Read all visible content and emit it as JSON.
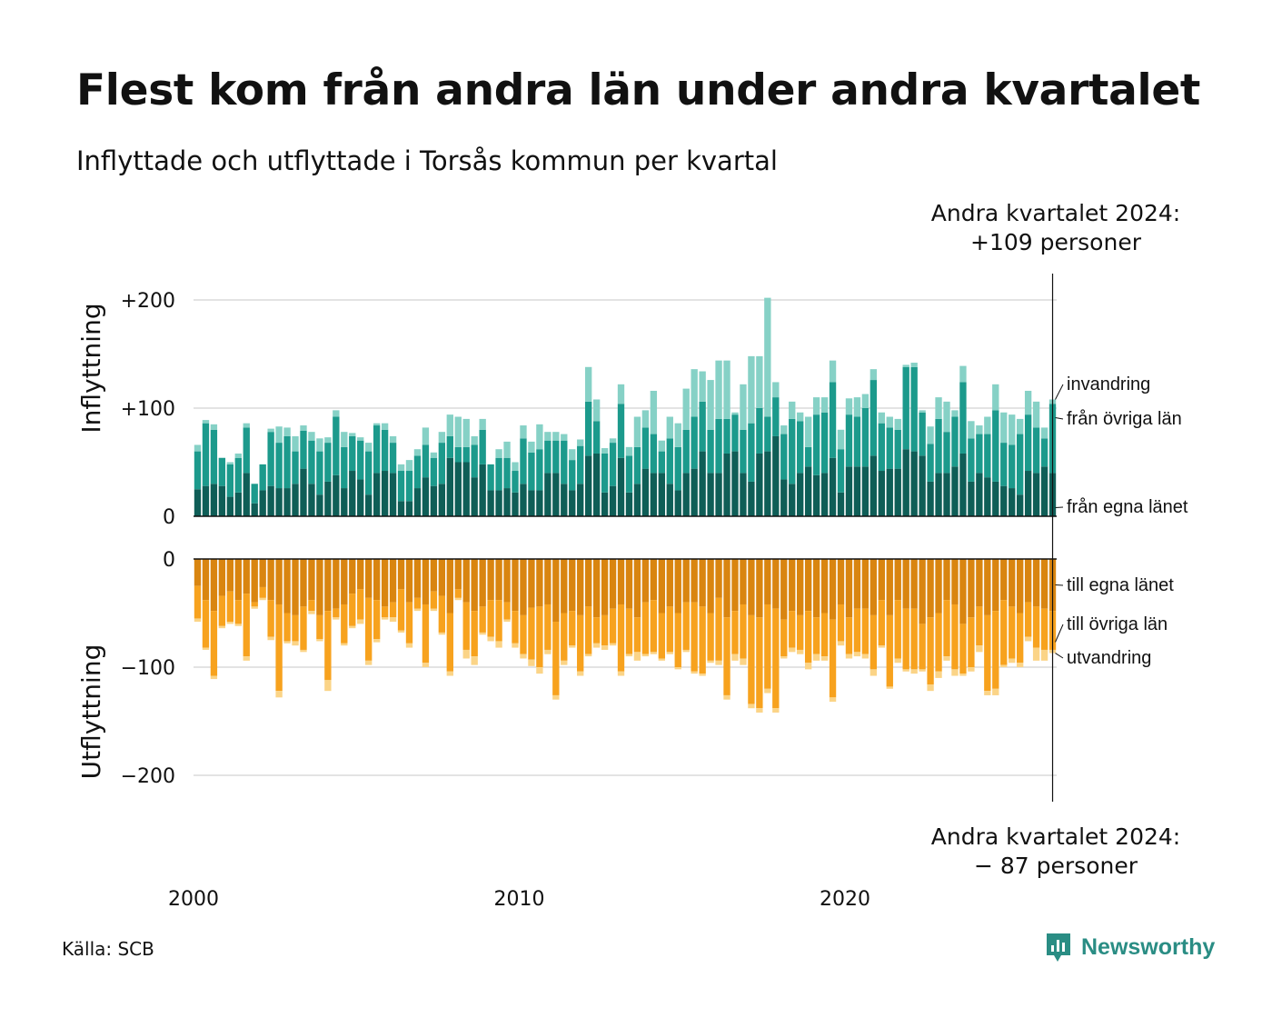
{
  "title": "Flest kom från andra län under andra kvartalet",
  "subtitle": "Inflyttade och utflyttade i Torsås kommun per kvartal",
  "annotations": {
    "top_line1": "Andra kvartalet 2024:",
    "top_line2": "+109 personer",
    "bottom_line1": "Andra kvartalet 2024:",
    "bottom_line2": "− 87 personer"
  },
  "source": "Källa: SCB",
  "brand": "Newsworthy",
  "colors": {
    "in_own": "#0f5e57",
    "in_other": "#1c9a8c",
    "in_abroad": "#86d1c6",
    "out_own": "#d98510",
    "out_other": "#f7a21e",
    "out_abroad": "#fbd487",
    "grid": "#e3e3e3",
    "brand": "#2a8d84"
  },
  "chart_data": {
    "type": "bar",
    "stacked": true,
    "x_start": "2000 Q1",
    "x_end": "2024 Q2",
    "x_ticks": [
      "2000",
      "2010",
      "2020"
    ],
    "panels": [
      {
        "ylabel": "Inflyttning",
        "ylim": [
          0,
          225
        ],
        "y_ticks": [
          {
            "value": 0,
            "label": "0"
          },
          {
            "value": 100,
            "label": "+100"
          },
          {
            "value": 200,
            "label": "+200"
          }
        ],
        "series": [
          {
            "name": "från egna länet",
            "values": [
              25,
              28,
              30,
              28,
              18,
              22,
              40,
              12,
              24,
              28,
              26,
              26,
              30,
              44,
              30,
              20,
              32,
              38,
              26,
              42,
              34,
              20,
              40,
              42,
              40,
              14,
              14,
              26,
              36,
              28,
              30,
              54,
              50,
              50,
              36,
              48,
              24,
              24,
              26,
              22,
              30,
              24,
              24,
              40,
              40,
              30,
              24,
              30,
              56,
              58,
              22,
              28,
              54,
              22,
              30,
              44,
              40,
              40,
              30,
              24,
              40,
              44,
              60,
              40,
              40,
              58,
              60,
              40,
              32,
              58,
              60,
              74,
              34,
              30,
              40,
              46,
              38,
              40,
              54,
              22,
              46,
              46,
              46,
              56,
              42,
              44,
              44,
              62,
              60,
              56,
              32,
              40,
              40,
              46,
              58,
              32,
              40,
              36,
              32,
              28,
              26,
              20,
              42,
              40,
              46,
              40
            ]
          },
          {
            "name": "från övriga län",
            "values": [
              35,
              58,
              50,
              26,
              30,
              32,
              42,
              18,
              24,
              50,
              42,
              48,
              30,
              35,
              40,
              40,
              36,
              54,
              38,
              32,
              36,
              40,
              44,
              38,
              28,
              28,
              28,
              30,
              30,
              26,
              38,
              20,
              14,
              14,
              30,
              32,
              24,
              30,
              28,
              20,
              42,
              35,
              38,
              30,
              30,
              40,
              28,
              35,
              50,
              30,
              36,
              40,
              50,
              34,
              34,
              38,
              36,
              20,
              42,
              40,
              40,
              48,
              46,
              40,
              50,
              32,
              34,
              40,
              54,
              42,
              32,
              36,
              42,
              60,
              48,
              18,
              56,
              56,
              70,
              40,
              48,
              46,
              54,
              70,
              44,
              38,
              36,
              76,
              78,
              40,
              35,
              50,
              38,
              46,
              66,
              40,
              36,
              40,
              66,
              40,
              40,
              56,
              52,
              42,
              26,
              64
            ]
          },
          {
            "name": "invandring",
            "values": [
              6,
              3,
              5,
              0,
              2,
              4,
              4,
              0,
              0,
              3,
              15,
              8,
              14,
              5,
              8,
              12,
              5,
              6,
              14,
              3,
              3,
              8,
              2,
              6,
              6,
              6,
              10,
              6,
              16,
              5,
              10,
              20,
              28,
              26,
              8,
              10,
              0,
              8,
              15,
              8,
              12,
              10,
              23,
              8,
              8,
              6,
              10,
              6,
              32,
              20,
              5,
              4,
              18,
              8,
              28,
              16,
              40,
              10,
              20,
              22,
              38,
              44,
              28,
              46,
              54,
              54,
              2,
              42,
              62,
              48,
              110,
              14,
              8,
              16,
              8,
              28,
              16,
              14,
              20,
              18,
              15,
              18,
              13,
              10,
              10,
              10,
              10,
              2,
              4,
              2,
              16,
              20,
              28,
              6,
              15,
              16,
              8,
              16,
              24,
              28,
              28,
              14,
              22,
              24,
              10,
              4
            ]
          }
        ]
      },
      {
        "ylabel": "Utflyttning",
        "ylim": [
          -225,
          0
        ],
        "y_ticks": [
          {
            "value": 0,
            "label": "0"
          },
          {
            "value": -100,
            "label": "−100"
          },
          {
            "value": -200,
            "label": "−200"
          }
        ],
        "series": [
          {
            "name": "till egna länet",
            "values": [
              -25,
              -38,
              -48,
              -34,
              -30,
              -38,
              -32,
              -40,
              -26,
              -38,
              -42,
              -50,
              -52,
              -44,
              -38,
              -52,
              -48,
              -46,
              -42,
              -32,
              -28,
              -36,
              -38,
              -44,
              -40,
              -28,
              -40,
              -36,
              -42,
              -30,
              -34,
              -50,
              -28,
              -40,
              -48,
              -44,
              -38,
              -38,
              -40,
              -48,
              -52,
              -45,
              -44,
              -42,
              -58,
              -50,
              -48,
              -52,
              -44,
              -54,
              -52,
              -46,
              -42,
              -46,
              -54,
              -40,
              -38,
              -50,
              -44,
              -50,
              -40,
              -40,
              -44,
              -50,
              -36,
              -54,
              -48,
              -42,
              -52,
              -54,
              -42,
              -46,
              -56,
              -48,
              -52,
              -48,
              -54,
              -50,
              -56,
              -42,
              -54,
              -46,
              -46,
              -52,
              -38,
              -52,
              -38,
              -46,
              -46,
              -60,
              -54,
              -50,
              -38,
              -42,
              -60,
              -54,
              -44,
              -52,
              -48,
              -38,
              -44,
              -50,
              -40,
              -44,
              -46,
              -48
            ]
          },
          {
            "name": "till övriga län",
            "values": [
              -30,
              -44,
              -60,
              -28,
              -28,
              -22,
              -58,
              -4,
              -10,
              -34,
              -80,
              -26,
              -24,
              -40,
              -10,
              -22,
              -64,
              -8,
              -36,
              -30,
              -28,
              -58,
              -36,
              -10,
              -14,
              -38,
              -38,
              -10,
              -54,
              -16,
              -34,
              -54,
              -8,
              -44,
              -42,
              -24,
              -34,
              -38,
              -16,
              -30,
              -36,
              -48,
              -56,
              -42,
              -68,
              -44,
              -32,
              -52,
              -44,
              -24,
              -28,
              -32,
              -62,
              -42,
              -32,
              -48,
              -48,
              -42,
              -42,
              -50,
              -44,
              -64,
              -62,
              -44,
              -58,
              -72,
              -40,
              -50,
              -82,
              -84,
              -78,
              -92,
              -34,
              -34,
              -32,
              -48,
              -34,
              -40,
              -72,
              -34,
              -34,
              -40,
              -42,
              -50,
              -42,
              -66,
              -54,
              -56,
              -56,
              -42,
              -62,
              -54,
              -52,
              -60,
              -46,
              -46,
              -36,
              -70,
              -72,
              -60,
              -48,
              -46,
              -32,
              -38,
              -38,
              -36
            ]
          },
          {
            "name": "utvandring",
            "values": [
              -3,
              -2,
              -3,
              -2,
              -2,
              -2,
              -4,
              -2,
              -2,
              -3,
              -6,
              -2,
              -4,
              -2,
              -3,
              -2,
              -10,
              -2,
              -2,
              -2,
              -4,
              -4,
              -3,
              -2,
              -4,
              -2,
              -4,
              -2,
              -4,
              -2,
              -2,
              -4,
              -2,
              -8,
              -8,
              -2,
              -4,
              -6,
              -2,
              -4,
              -4,
              -6,
              -6,
              -4,
              -4,
              -4,
              -2,
              -4,
              -2,
              -4,
              -4,
              -2,
              -4,
              -2,
              -8,
              -2,
              -2,
              -2,
              -2,
              -2,
              -2,
              -2,
              -2,
              -2,
              -4,
              -4,
              -6,
              -6,
              -4,
              -4,
              -4,
              -4,
              -2,
              -4,
              -4,
              -6,
              -6,
              -4,
              -4,
              -4,
              -4,
              -4,
              -4,
              -6,
              -2,
              -2,
              -4,
              -2,
              -4,
              -2,
              -6,
              -6,
              -4,
              -6,
              -2,
              -4,
              -6,
              -4,
              -6,
              -2,
              -4,
              -4,
              -4,
              -12,
              -10,
              -3
            ]
          }
        ]
      }
    ]
  }
}
